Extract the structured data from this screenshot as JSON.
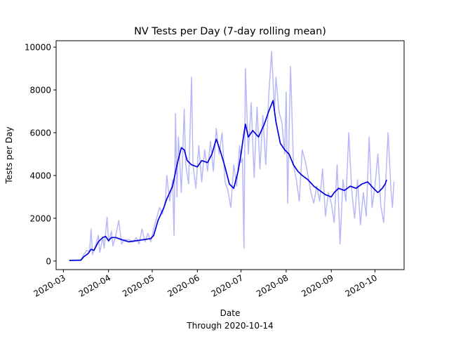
{
  "chart_data": {
    "type": "line",
    "title": "NV Tests per Day (7-day rolling mean)",
    "xlabel": "Date",
    "xlabel_sub": "Through 2020-10-14",
    "ylabel": "Tests per Day",
    "xlim": [
      "2020-02-25",
      "2020-10-21"
    ],
    "ylim": [
      -400,
      10300
    ],
    "grid": false,
    "x_ticks": [
      "2020-03-01",
      "2020-04-01",
      "2020-05-01",
      "2020-06-01",
      "2020-07-01",
      "2020-08-01",
      "2020-09-01",
      "2020-10-01"
    ],
    "x_tick_labels": [
      "2020-03",
      "2020-04",
      "2020-05",
      "2020-06",
      "2020-07",
      "2020-08",
      "2020-09",
      "2020-10"
    ],
    "y_ticks": [
      0,
      2000,
      4000,
      6000,
      8000,
      10000
    ],
    "y_tick_labels": [
      "0",
      "2000",
      "4000",
      "6000",
      "8000",
      "10000"
    ],
    "series": [
      {
        "role": "daily",
        "color": "#b8b8f8",
        "points": [
          [
            "2020-03-05",
            30
          ],
          [
            "2020-03-10",
            40
          ],
          [
            "2020-03-13",
            60
          ],
          [
            "2020-03-15",
            300
          ],
          [
            "2020-03-17",
            500
          ],
          [
            "2020-03-19",
            450
          ],
          [
            "2020-03-20",
            1500
          ],
          [
            "2020-03-21",
            300
          ],
          [
            "2020-03-23",
            700
          ],
          [
            "2020-03-25",
            1200
          ],
          [
            "2020-03-26",
            400
          ],
          [
            "2020-03-28",
            1100
          ],
          [
            "2020-03-29",
            600
          ],
          [
            "2020-03-31",
            2050
          ],
          [
            "2020-04-01",
            900
          ],
          [
            "2020-04-03",
            1400
          ],
          [
            "2020-04-04",
            700
          ],
          [
            "2020-04-06",
            1200
          ],
          [
            "2020-04-08",
            1900
          ],
          [
            "2020-04-10",
            800
          ],
          [
            "2020-04-12",
            1000
          ],
          [
            "2020-04-15",
            1000
          ],
          [
            "2020-04-18",
            900
          ],
          [
            "2020-04-20",
            1100
          ],
          [
            "2020-04-22",
            800
          ],
          [
            "2020-04-24",
            1500
          ],
          [
            "2020-04-26",
            900
          ],
          [
            "2020-04-28",
            1300
          ],
          [
            "2020-04-30",
            900
          ],
          [
            "2020-05-02",
            1500
          ],
          [
            "2020-05-04",
            2000
          ],
          [
            "2020-05-06",
            2500
          ],
          [
            "2020-05-08",
            2200
          ],
          [
            "2020-05-10",
            2800
          ],
          [
            "2020-05-11",
            4000
          ],
          [
            "2020-05-13",
            2800
          ],
          [
            "2020-05-15",
            3800
          ],
          [
            "2020-05-16",
            1200
          ],
          [
            "2020-05-17",
            6900
          ],
          [
            "2020-05-18",
            3000
          ],
          [
            "2020-05-19",
            5800
          ],
          [
            "2020-05-21",
            3200
          ],
          [
            "2020-05-23",
            7100
          ],
          [
            "2020-05-24",
            4500
          ],
          [
            "2020-05-26",
            3600
          ],
          [
            "2020-05-28",
            8600
          ],
          [
            "2020-05-29",
            4500
          ],
          [
            "2020-05-31",
            3400
          ],
          [
            "2020-06-02",
            5400
          ],
          [
            "2020-06-04",
            3700
          ],
          [
            "2020-06-06",
            5200
          ],
          [
            "2020-06-08",
            4200
          ],
          [
            "2020-06-10",
            5600
          ],
          [
            "2020-06-12",
            4200
          ],
          [
            "2020-06-14",
            6200
          ],
          [
            "2020-06-16",
            5000
          ],
          [
            "2020-06-18",
            6000
          ],
          [
            "2020-06-20",
            3700
          ],
          [
            "2020-06-22",
            3300
          ],
          [
            "2020-06-24",
            2500
          ],
          [
            "2020-06-26",
            4500
          ],
          [
            "2020-06-28",
            3500
          ],
          [
            "2020-06-30",
            5400
          ],
          [
            "2020-07-01",
            4600
          ],
          [
            "2020-07-02",
            4800
          ],
          [
            "2020-07-03",
            600
          ],
          [
            "2020-07-04",
            9000
          ],
          [
            "2020-07-06",
            5000
          ],
          [
            "2020-07-08",
            7400
          ],
          [
            "2020-07-10",
            3900
          ],
          [
            "2020-07-12",
            7200
          ],
          [
            "2020-07-14",
            4300
          ],
          [
            "2020-07-16",
            6800
          ],
          [
            "2020-07-18",
            4500
          ],
          [
            "2020-07-20",
            7700
          ],
          [
            "2020-07-22",
            9800
          ],
          [
            "2020-07-24",
            7000
          ],
          [
            "2020-07-25",
            8600
          ],
          [
            "2020-07-27",
            7000
          ],
          [
            "2020-07-29",
            6500
          ],
          [
            "2020-07-31",
            5000
          ],
          [
            "2020-08-01",
            7900
          ],
          [
            "2020-08-02",
            2700
          ],
          [
            "2020-08-04",
            9100
          ],
          [
            "2020-08-06",
            4500
          ],
          [
            "2020-08-08",
            3800
          ],
          [
            "2020-08-10",
            2800
          ],
          [
            "2020-08-12",
            5200
          ],
          [
            "2020-08-14",
            4700
          ],
          [
            "2020-08-16",
            4000
          ],
          [
            "2020-08-18",
            3200
          ],
          [
            "2020-08-20",
            2700
          ],
          [
            "2020-08-22",
            3500
          ],
          [
            "2020-08-24",
            2800
          ],
          [
            "2020-08-26",
            4300
          ],
          [
            "2020-08-28",
            2100
          ],
          [
            "2020-08-30",
            3200
          ],
          [
            "2020-09-01",
            2700
          ],
          [
            "2020-09-03",
            1800
          ],
          [
            "2020-09-05",
            4500
          ],
          [
            "2020-09-07",
            800
          ],
          [
            "2020-09-09",
            3800
          ],
          [
            "2020-09-11",
            2800
          ],
          [
            "2020-09-13",
            6000
          ],
          [
            "2020-09-15",
            3300
          ],
          [
            "2020-09-17",
            2000
          ],
          [
            "2020-09-19",
            3800
          ],
          [
            "2020-09-21",
            1700
          ],
          [
            "2020-09-23",
            3200
          ],
          [
            "2020-09-25",
            2100
          ],
          [
            "2020-09-27",
            5800
          ],
          [
            "2020-09-29",
            2500
          ],
          [
            "2020-10-01",
            3500
          ],
          [
            "2020-10-03",
            5000
          ],
          [
            "2020-10-05",
            2600
          ],
          [
            "2020-10-07",
            1800
          ],
          [
            "2020-10-10",
            6000
          ],
          [
            "2020-10-12",
            3300
          ],
          [
            "2020-10-13",
            2500
          ],
          [
            "2020-10-14",
            3700
          ]
        ]
      },
      {
        "role": "rolling-mean",
        "color": "#0000e0",
        "points": [
          [
            "2020-03-05",
            30
          ],
          [
            "2020-03-13",
            40
          ],
          [
            "2020-03-15",
            200
          ],
          [
            "2020-03-18",
            350
          ],
          [
            "2020-03-20",
            550
          ],
          [
            "2020-03-22",
            500
          ],
          [
            "2020-03-25",
            900
          ],
          [
            "2020-03-28",
            1100
          ],
          [
            "2020-03-30",
            1150
          ],
          [
            "2020-04-01",
            950
          ],
          [
            "2020-04-03",
            1100
          ],
          [
            "2020-04-06",
            1100
          ],
          [
            "2020-04-10",
            1000
          ],
          [
            "2020-04-15",
            900
          ],
          [
            "2020-04-20",
            950
          ],
          [
            "2020-04-25",
            1000
          ],
          [
            "2020-04-30",
            1050
          ],
          [
            "2020-05-02",
            1200
          ],
          [
            "2020-05-05",
            1900
          ],
          [
            "2020-05-09",
            2500
          ],
          [
            "2020-05-11",
            2900
          ],
          [
            "2020-05-13",
            3200
          ],
          [
            "2020-05-15",
            3500
          ],
          [
            "2020-05-18",
            4500
          ],
          [
            "2020-05-21",
            5300
          ],
          [
            "2020-05-23",
            5200
          ],
          [
            "2020-05-25",
            4700
          ],
          [
            "2020-05-28",
            4500
          ],
          [
            "2020-06-01",
            4400
          ],
          [
            "2020-06-04",
            4700
          ],
          [
            "2020-06-08",
            4600
          ],
          [
            "2020-06-11",
            5000
          ],
          [
            "2020-06-14",
            5700
          ],
          [
            "2020-06-17",
            5100
          ],
          [
            "2020-06-20",
            4400
          ],
          [
            "2020-06-23",
            3600
          ],
          [
            "2020-06-26",
            3400
          ],
          [
            "2020-06-29",
            4200
          ],
          [
            "2020-07-01",
            5000
          ],
          [
            "2020-07-02",
            5500
          ],
          [
            "2020-07-04",
            6400
          ],
          [
            "2020-07-06",
            5800
          ],
          [
            "2020-07-09",
            6100
          ],
          [
            "2020-07-13",
            5800
          ],
          [
            "2020-07-17",
            6400
          ],
          [
            "2020-07-20",
            7000
          ],
          [
            "2020-07-23",
            7500
          ],
          [
            "2020-07-25",
            6500
          ],
          [
            "2020-07-28",
            5500
          ],
          [
            "2020-07-31",
            5200
          ],
          [
            "2020-08-03",
            5000
          ],
          [
            "2020-08-06",
            4500
          ],
          [
            "2020-08-09",
            4200
          ],
          [
            "2020-08-12",
            4000
          ],
          [
            "2020-08-16",
            3800
          ],
          [
            "2020-08-20",
            3500
          ],
          [
            "2020-08-24",
            3300
          ],
          [
            "2020-08-28",
            3100
          ],
          [
            "2020-09-01",
            3000
          ],
          [
            "2020-09-03",
            3200
          ],
          [
            "2020-09-06",
            3400
          ],
          [
            "2020-09-10",
            3300
          ],
          [
            "2020-09-14",
            3500
          ],
          [
            "2020-09-18",
            3400
          ],
          [
            "2020-09-22",
            3600
          ],
          [
            "2020-09-26",
            3700
          ],
          [
            "2020-09-30",
            3400
          ],
          [
            "2020-10-03",
            3200
          ],
          [
            "2020-10-06",
            3400
          ],
          [
            "2020-10-08",
            3600
          ],
          [
            "2020-10-09",
            3800
          ]
        ]
      }
    ]
  }
}
